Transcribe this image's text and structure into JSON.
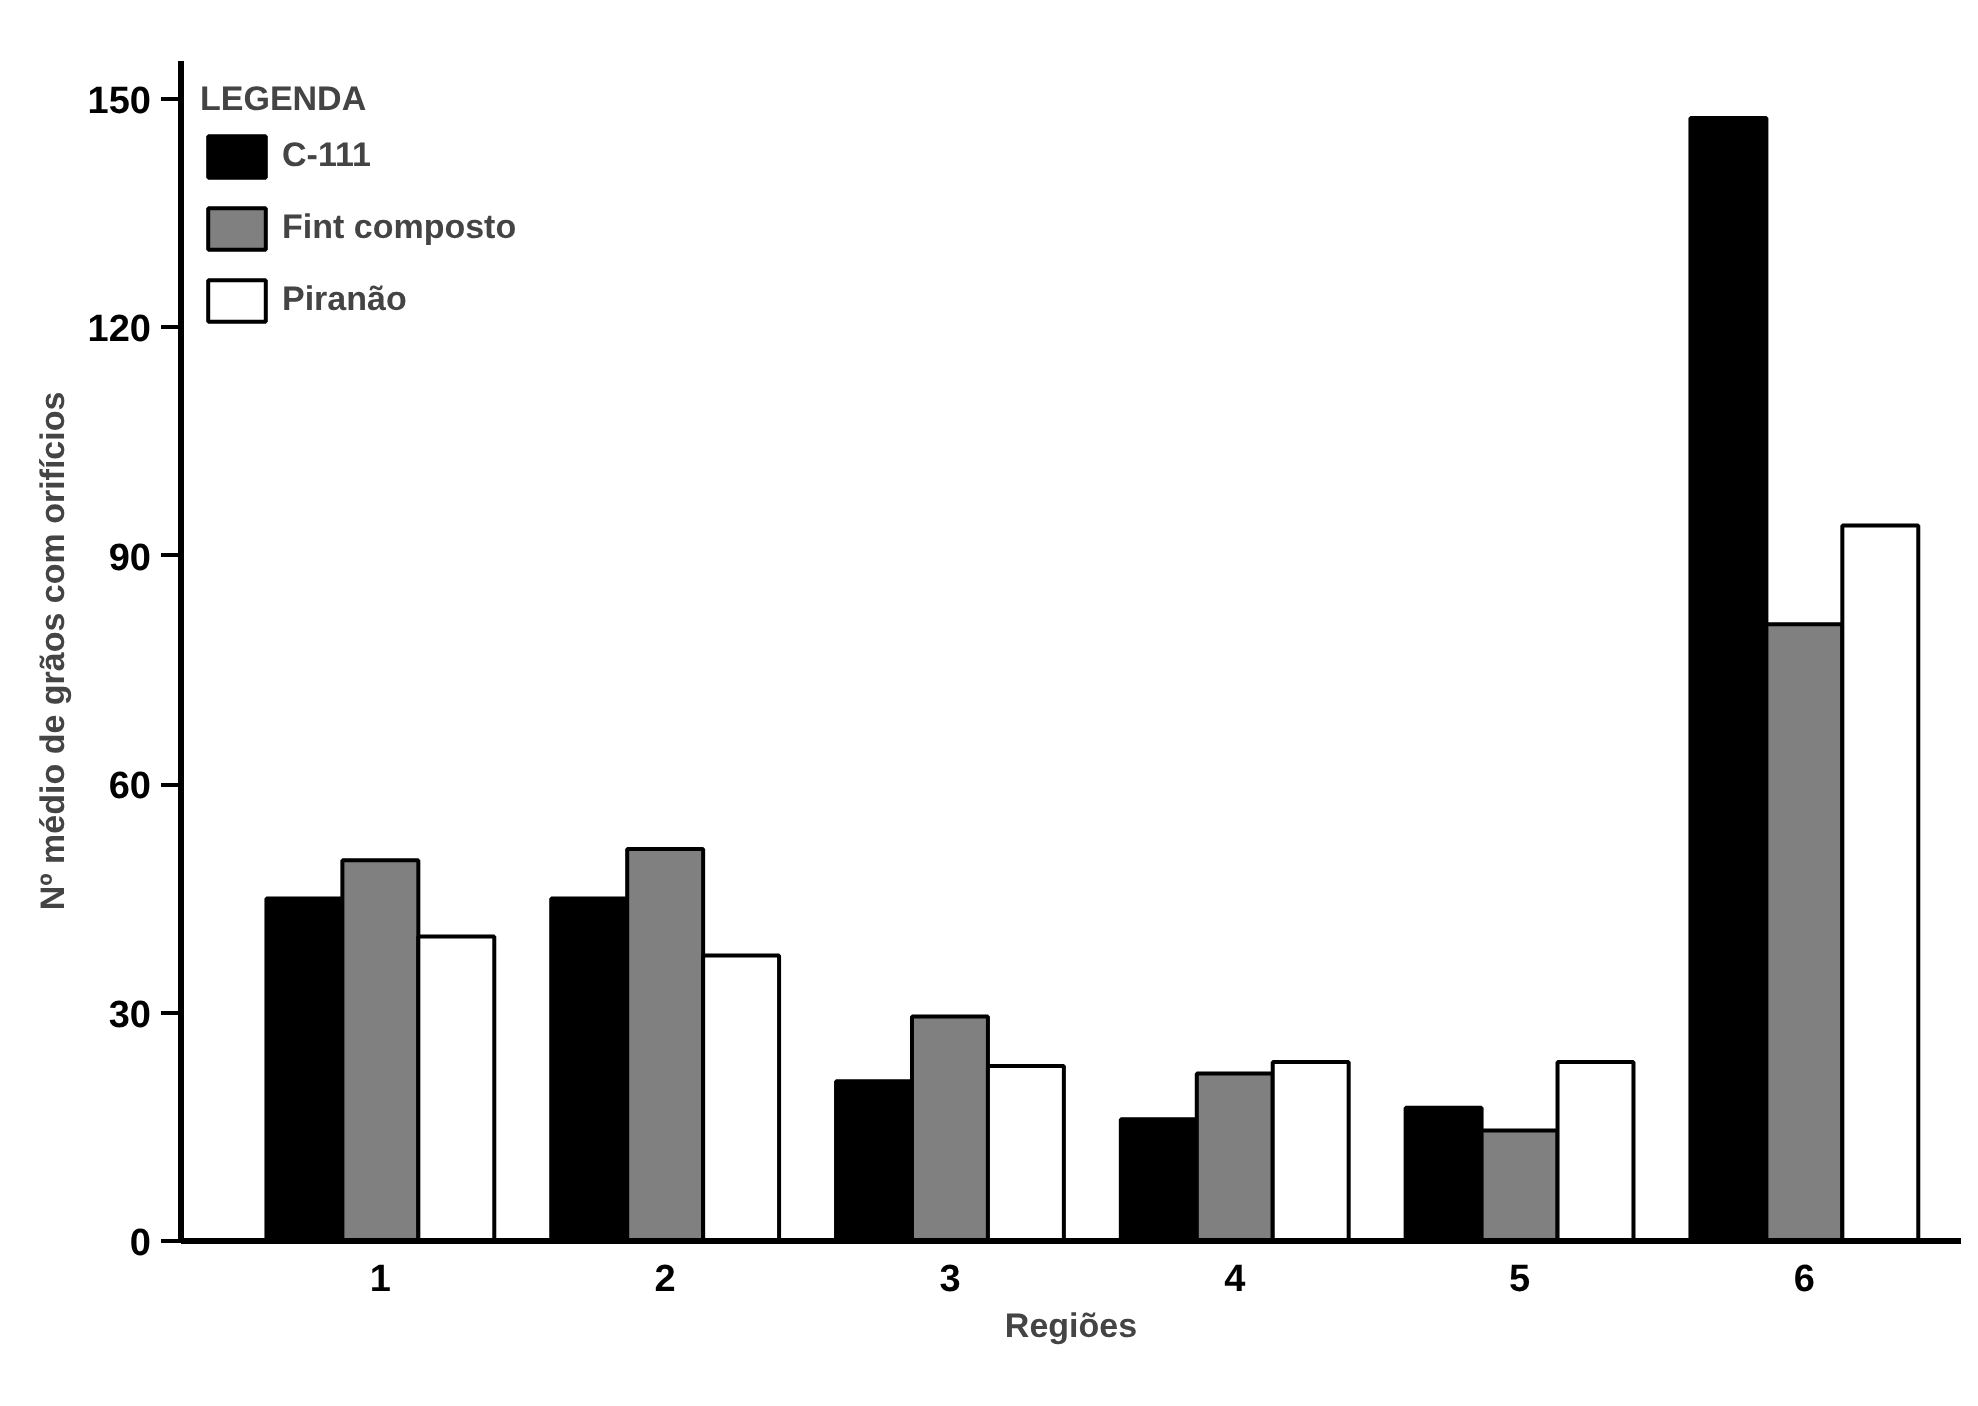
{
  "chart_data": {
    "type": "bar",
    "xlabel": "Regiões",
    "ylabel": "Nº médio de grãos com orifícios",
    "legend_title": "LEGENDA",
    "categories": [
      "1",
      "2",
      "3",
      "4",
      "5",
      "6"
    ],
    "series": [
      {
        "name": "C-111",
        "color": "#000000",
        "values": [
          45,
          45,
          21,
          16,
          17.5,
          147.5
        ]
      },
      {
        "name": "Fint composto",
        "color": "#808080",
        "values": [
          50,
          51.5,
          29.5,
          22,
          14.5,
          81
        ]
      },
      {
        "name": "Piranão",
        "color": "#ffffff",
        "values": [
          40,
          37.5,
          23,
          23.5,
          23.5,
          94
        ]
      }
    ],
    "ylim": [
      0,
      155
    ],
    "yticks": [
      0,
      30,
      60,
      90,
      120,
      150
    ],
    "grid": false,
    "legend": "top left"
  }
}
